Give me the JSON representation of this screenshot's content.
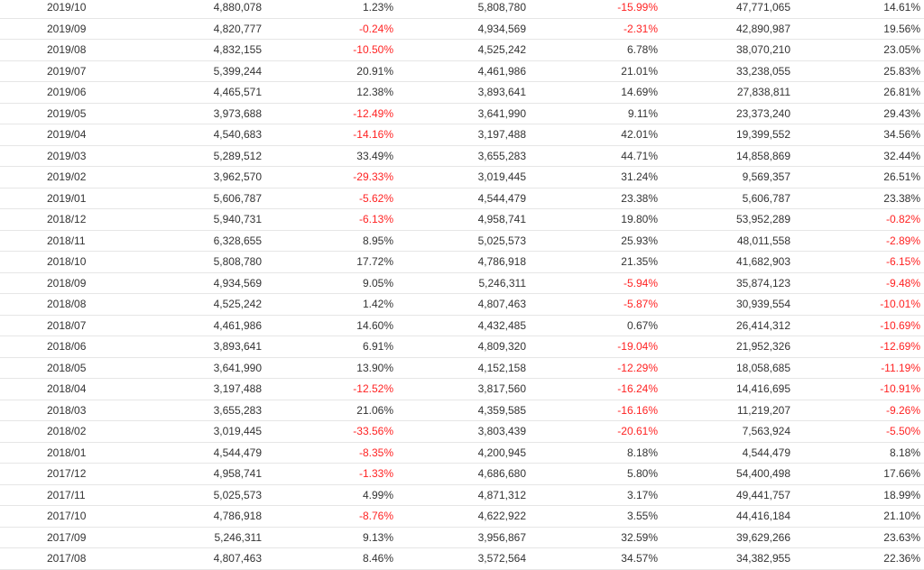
{
  "rows": [
    {
      "date": "2019/10",
      "v1": "4,880,078",
      "p1": "1.23%",
      "v2": "5,808,780",
      "p2": "-15.99%",
      "v3": "47,771,065",
      "p3": "14.61%"
    },
    {
      "date": "2019/09",
      "v1": "4,820,777",
      "p1": "-0.24%",
      "v2": "4,934,569",
      "p2": "-2.31%",
      "v3": "42,890,987",
      "p3": "19.56%"
    },
    {
      "date": "2019/08",
      "v1": "4,832,155",
      "p1": "-10.50%",
      "v2": "4,525,242",
      "p2": "6.78%",
      "v3": "38,070,210",
      "p3": "23.05%"
    },
    {
      "date": "2019/07",
      "v1": "5,399,244",
      "p1": "20.91%",
      "v2": "4,461,986",
      "p2": "21.01%",
      "v3": "33,238,055",
      "p3": "25.83%"
    },
    {
      "date": "2019/06",
      "v1": "4,465,571",
      "p1": "12.38%",
      "v2": "3,893,641",
      "p2": "14.69%",
      "v3": "27,838,811",
      "p3": "26.81%"
    },
    {
      "date": "2019/05",
      "v1": "3,973,688",
      "p1": "-12.49%",
      "v2": "3,641,990",
      "p2": "9.11%",
      "v3": "23,373,240",
      "p3": "29.43%"
    },
    {
      "date": "2019/04",
      "v1": "4,540,683",
      "p1": "-14.16%",
      "v2": "3,197,488",
      "p2": "42.01%",
      "v3": "19,399,552",
      "p3": "34.56%"
    },
    {
      "date": "2019/03",
      "v1": "5,289,512",
      "p1": "33.49%",
      "v2": "3,655,283",
      "p2": "44.71%",
      "v3": "14,858,869",
      "p3": "32.44%"
    },
    {
      "date": "2019/02",
      "v1": "3,962,570",
      "p1": "-29.33%",
      "v2": "3,019,445",
      "p2": "31.24%",
      "v3": "9,569,357",
      "p3": "26.51%"
    },
    {
      "date": "2019/01",
      "v1": "5,606,787",
      "p1": "-5.62%",
      "v2": "4,544,479",
      "p2": "23.38%",
      "v3": "5,606,787",
      "p3": "23.38%"
    },
    {
      "date": "2018/12",
      "v1": "5,940,731",
      "p1": "-6.13%",
      "v2": "4,958,741",
      "p2": "19.80%",
      "v3": "53,952,289",
      "p3": "-0.82%"
    },
    {
      "date": "2018/11",
      "v1": "6,328,655",
      "p1": "8.95%",
      "v2": "5,025,573",
      "p2": "25.93%",
      "v3": "48,011,558",
      "p3": "-2.89%"
    },
    {
      "date": "2018/10",
      "v1": "5,808,780",
      "p1": "17.72%",
      "v2": "4,786,918",
      "p2": "21.35%",
      "v3": "41,682,903",
      "p3": "-6.15%"
    },
    {
      "date": "2018/09",
      "v1": "4,934,569",
      "p1": "9.05%",
      "v2": "5,246,311",
      "p2": "-5.94%",
      "v3": "35,874,123",
      "p3": "-9.48%"
    },
    {
      "date": "2018/08",
      "v1": "4,525,242",
      "p1": "1.42%",
      "v2": "4,807,463",
      "p2": "-5.87%",
      "v3": "30,939,554",
      "p3": "-10.01%"
    },
    {
      "date": "2018/07",
      "v1": "4,461,986",
      "p1": "14.60%",
      "v2": "4,432,485",
      "p2": "0.67%",
      "v3": "26,414,312",
      "p3": "-10.69%"
    },
    {
      "date": "2018/06",
      "v1": "3,893,641",
      "p1": "6.91%",
      "v2": "4,809,320",
      "p2": "-19.04%",
      "v3": "21,952,326",
      "p3": "-12.69%"
    },
    {
      "date": "2018/05",
      "v1": "3,641,990",
      "p1": "13.90%",
      "v2": "4,152,158",
      "p2": "-12.29%",
      "v3": "18,058,685",
      "p3": "-11.19%"
    },
    {
      "date": "2018/04",
      "v1": "3,197,488",
      "p1": "-12.52%",
      "v2": "3,817,560",
      "p2": "-16.24%",
      "v3": "14,416,695",
      "p3": "-10.91%"
    },
    {
      "date": "2018/03",
      "v1": "3,655,283",
      "p1": "21.06%",
      "v2": "4,359,585",
      "p2": "-16.16%",
      "v3": "11,219,207",
      "p3": "-9.26%"
    },
    {
      "date": "2018/02",
      "v1": "3,019,445",
      "p1": "-33.56%",
      "v2": "3,803,439",
      "p2": "-20.61%",
      "v3": "7,563,924",
      "p3": "-5.50%"
    },
    {
      "date": "2018/01",
      "v1": "4,544,479",
      "p1": "-8.35%",
      "v2": "4,200,945",
      "p2": "8.18%",
      "v3": "4,544,479",
      "p3": "8.18%"
    },
    {
      "date": "2017/12",
      "v1": "4,958,741",
      "p1": "-1.33%",
      "v2": "4,686,680",
      "p2": "5.80%",
      "v3": "54,400,498",
      "p3": "17.66%"
    },
    {
      "date": "2017/11",
      "v1": "5,025,573",
      "p1": "4.99%",
      "v2": "4,871,312",
      "p2": "3.17%",
      "v3": "49,441,757",
      "p3": "18.99%"
    },
    {
      "date": "2017/10",
      "v1": "4,786,918",
      "p1": "-8.76%",
      "v2": "4,622,922",
      "p2": "3.55%",
      "v3": "44,416,184",
      "p3": "21.10%"
    },
    {
      "date": "2017/09",
      "v1": "5,246,311",
      "p1": "9.13%",
      "v2": "3,956,867",
      "p2": "32.59%",
      "v3": "39,629,266",
      "p3": "23.63%"
    },
    {
      "date": "2017/08",
      "v1": "4,807,463",
      "p1": "8.46%",
      "v2": "3,572,564",
      "p2": "34.57%",
      "v3": "34,382,955",
      "p3": "22.36%"
    }
  ],
  "colors": {
    "text": "#333333",
    "negative": "#ff2222",
    "divider": "#e6e6e6"
  }
}
